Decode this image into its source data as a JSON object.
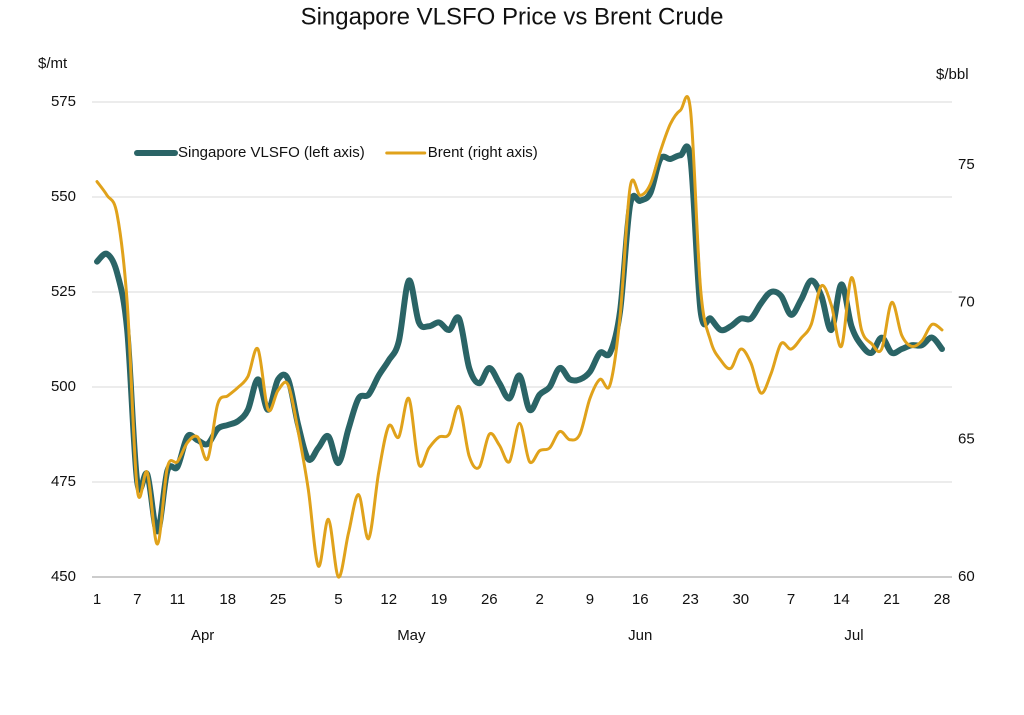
{
  "chart_data": {
    "type": "line",
    "title": "Singapore VLSFO Price vs Brent Crude",
    "y_label": "$/mt",
    "y2_label": "$/bbl",
    "categories": [
      "1",
      null,
      null,
      null,
      "7",
      null,
      null,
      null,
      "11",
      null,
      null,
      null,
      null,
      "18",
      null,
      null,
      null,
      null,
      "25",
      null,
      null,
      null,
      null,
      null,
      "5",
      null,
      null,
      null,
      null,
      "12",
      null,
      null,
      null,
      null,
      "19",
      null,
      null,
      null,
      null,
      "26",
      null,
      null,
      null,
      null,
      "2",
      null,
      null,
      null,
      null,
      "9",
      null,
      null,
      null,
      null,
      "16",
      null,
      null,
      null,
      null,
      "23",
      null,
      null,
      null,
      null,
      "30",
      null,
      null,
      null,
      null,
      "7",
      null,
      null,
      null,
      null,
      "14",
      null,
      null,
      null,
      null,
      "21",
      null,
      null,
      null,
      null,
      "28"
    ],
    "x_group_labels": [
      "Apr",
      "May",
      "Jun",
      "Jul"
    ],
    "series": [
      {
        "name": "Singapore VLSFO (left axis)",
        "color": "#2a6466",
        "axis": "y",
        "values": [
          533,
          535,
          530,
          515,
          475,
          477,
          462,
          478,
          479,
          487,
          486,
          485,
          489,
          490,
          491,
          494,
          502,
          494,
          502,
          502,
          490,
          481,
          484,
          487,
          480,
          489,
          497,
          498,
          503,
          507,
          512,
          528,
          517,
          516,
          517,
          515,
          518,
          505,
          501,
          505,
          501,
          497,
          503,
          494,
          498,
          500,
          505,
          502,
          502,
          504,
          509,
          509,
          520,
          548,
          549,
          551,
          560,
          560,
          561,
          560,
          520,
          518,
          515,
          516,
          518,
          518,
          522,
          525,
          524,
          519,
          523,
          528,
          524,
          515,
          527,
          516,
          511,
          509,
          513,
          509,
          510,
          511,
          511,
          513,
          510
        ]
      },
      {
        "name": "Brent (right axis)",
        "color": "#e0a21b",
        "axis": "y2",
        "values": [
          74.4,
          73.9,
          73.2,
          70,
          63.2,
          63.8,
          61.2,
          64.0,
          64.2,
          64.9,
          65.1,
          64.3,
          66.3,
          66.6,
          66.9,
          67.3,
          68.3,
          66.1,
          66.8,
          67.0,
          65.3,
          63.2,
          60.4,
          62.1,
          60.0,
          61.6,
          63.0,
          61.4,
          63.8,
          65.5,
          65.1,
          66.5,
          64.1,
          64.7,
          65.1,
          65.2,
          66.2,
          64.4,
          64.0,
          65.2,
          64.8,
          64.2,
          65.6,
          64.2,
          64.6,
          64.7,
          65.3,
          65.0,
          65.2,
          66.5,
          67.2,
          67.0,
          69.5,
          74.2,
          73.9,
          74.3,
          75.5,
          76.5,
          77.0,
          77.0,
          70.5,
          68.6,
          67.9,
          67.6,
          68.3,
          67.8,
          66.7,
          67.4,
          68.5,
          68.3,
          68.7,
          69.2,
          70.6,
          69.9,
          68.4,
          70.9,
          69.0,
          68.5,
          68.3,
          70.0,
          68.8,
          68.4,
          68.6,
          69.2,
          69.0
        ]
      }
    ],
    "ylim": [
      450,
      575
    ],
    "yticks": [
      450,
      475,
      500,
      525,
      550,
      575
    ],
    "y2lim": [
      60,
      77.3
    ],
    "y2ticks": [
      60,
      65,
      70,
      75
    ],
    "grid": true
  }
}
